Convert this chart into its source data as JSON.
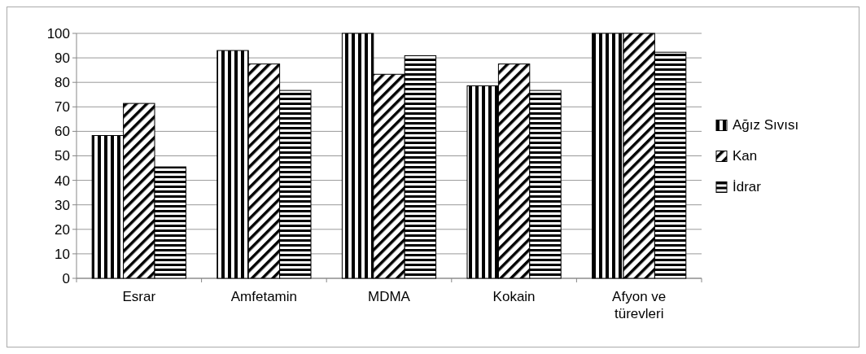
{
  "chart_data": {
    "type": "bar",
    "categories": [
      "Esrar",
      "Amfetamin",
      "MDMA",
      "Kokain",
      "Afyon ve türevleri"
    ],
    "series": [
      {
        "name": "Ağız Sıvısı",
        "color": "#000000",
        "values": [
          58.3,
          93,
          100,
          78.6,
          100
        ]
      },
      {
        "name": "Kan",
        "color": "#000000",
        "values": [
          71.4,
          87.5,
          83.3,
          87.5,
          100
        ]
      },
      {
        "name": "İdrar",
        "color": "#000000",
        "values": [
          45.5,
          76.7,
          90.9,
          76.7,
          92.3
        ]
      }
    ],
    "ylim": [
      0,
      100
    ],
    "yticks": [
      0,
      10,
      20,
      30,
      40,
      50,
      60,
      70,
      80,
      90,
      100
    ],
    "grid": "y",
    "legend": "right"
  }
}
